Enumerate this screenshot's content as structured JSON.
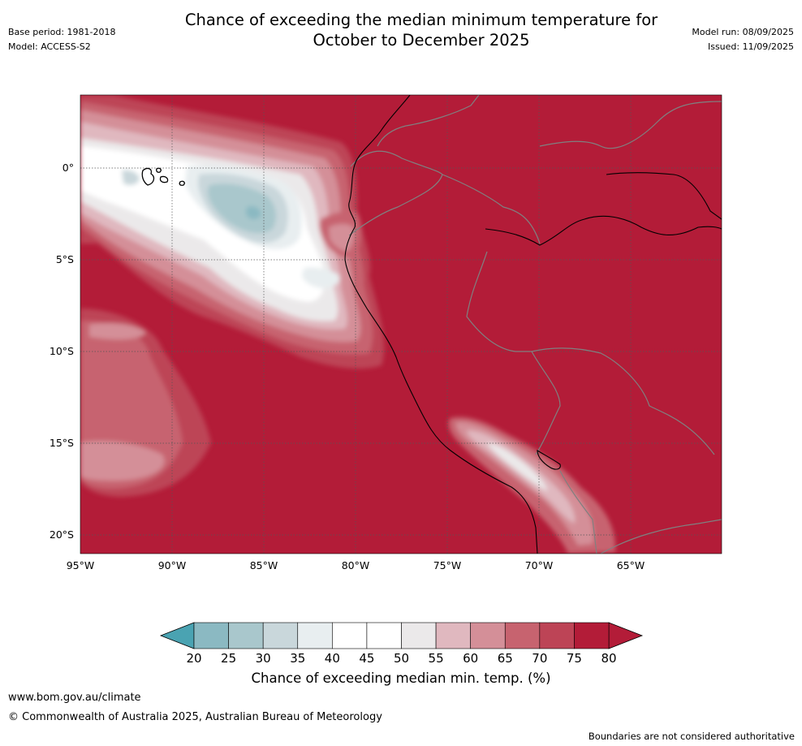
{
  "title": {
    "line1": "Chance of exceeding the median minimum temperature for",
    "line2": "October to December 2025"
  },
  "meta_left": {
    "base_period": "Base period: 1981-2018",
    "model": "Model: ACCESS-S2"
  },
  "meta_right": {
    "model_run": "Model run: 08/09/2025",
    "issued": "Issued: 11/09/2025"
  },
  "map": {
    "lat_labels": [
      "0°",
      "5°S",
      "10°S",
      "15°S",
      "20°S"
    ],
    "lon_labels": [
      "95°W",
      "90°W",
      "85°W",
      "80°W",
      "75°W",
      "70°W",
      "65°W"
    ],
    "base_colour": "#b31c38",
    "land_border_colour": "#808080",
    "coast_colour": "#000000"
  },
  "colorbar": {
    "title": "Chance of exceeding median min. temp. (%)",
    "ticks": [
      "20",
      "25",
      "30",
      "35",
      "40",
      "45",
      "50",
      "55",
      "60",
      "65",
      "70",
      "75",
      "80"
    ],
    "colors": [
      "#67aab8",
      "#8bb9c2",
      "#a9c7cc",
      "#c9d7db",
      "#e8eef0",
      "#ffffff",
      "#ffffff",
      "#ebe9ea",
      "#e0b8bf",
      "#d48f98",
      "#c7636f",
      "#bd4456",
      "#b31c38"
    ],
    "under_colour": "#4aa3b2",
    "over_colour": "#b31c38"
  },
  "footer": {
    "url": "www.bom.gov.au/climate",
    "copyright": "© Commonwealth of Australia 2025, Australian Bureau of Meteorology",
    "boundaries": "Boundaries are not considered authoritative"
  }
}
